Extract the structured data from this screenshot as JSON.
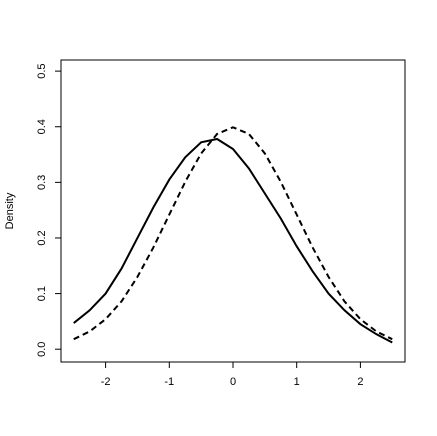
{
  "chart_data": {
    "type": "line",
    "y_label": "Density",
    "x": [
      -2.5,
      -2.25,
      -2,
      -1.75,
      -1.5,
      -1.25,
      -1,
      -0.75,
      -0.5,
      -0.25,
      0,
      0.25,
      0.5,
      0.75,
      1,
      1.25,
      1.5,
      1.75,
      2,
      2.25,
      2.5
    ],
    "series": [
      {
        "color": "#000000",
        "dash": "solid",
        "values": [
          0.047,
          0.07,
          0.1,
          0.145,
          0.2,
          0.255,
          0.305,
          0.345,
          0.372,
          0.378,
          0.36,
          0.325,
          0.28,
          0.235,
          0.185,
          0.14,
          0.1,
          0.07,
          0.045,
          0.027,
          0.012
        ]
      },
      {
        "color": "#000000",
        "dash": "dashed",
        "values": [
          0.018,
          0.032,
          0.054,
          0.086,
          0.13,
          0.183,
          0.242,
          0.301,
          0.352,
          0.387,
          0.399,
          0.387,
          0.352,
          0.301,
          0.242,
          0.183,
          0.13,
          0.086,
          0.054,
          0.032,
          0.018
        ]
      }
    ],
    "xlim": [
      -2.7,
      2.7
    ],
    "ylim": [
      -0.023,
      0.52
    ],
    "xticks": [
      -2,
      -1,
      0,
      1,
      2
    ],
    "yticks": [
      {
        "value": 0,
        "label": "0.0"
      },
      0.1,
      0.2,
      0.3,
      0.4,
      0.5
    ]
  }
}
